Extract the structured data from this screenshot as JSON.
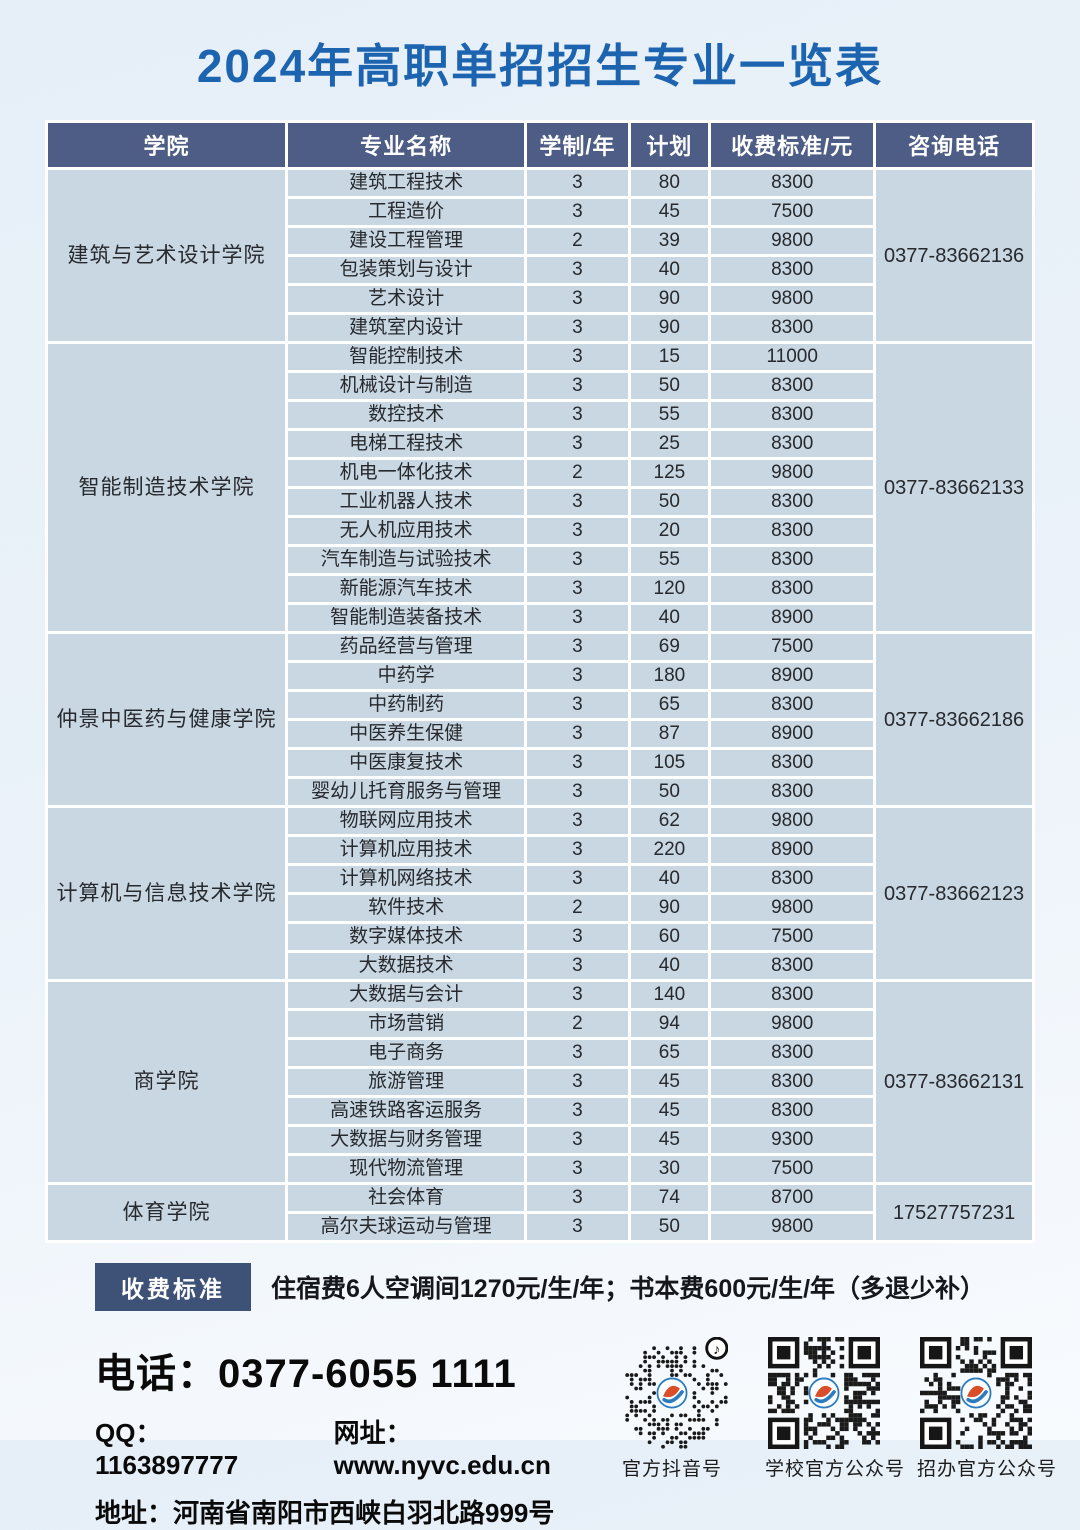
{
  "title": "2024年高职单招招生专业一览表",
  "table": {
    "columns": [
      "学院",
      "专业名称",
      "学制/年",
      "计划",
      "收费标准/元",
      "咨询电话"
    ],
    "sections": [
      {
        "college": "建筑与艺术设计学院",
        "phone": "0377-83662136",
        "rows": [
          {
            "major": "建筑工程技术",
            "years": "3",
            "plan": "80",
            "fee": "8300"
          },
          {
            "major": "工程造价",
            "years": "3",
            "plan": "45",
            "fee": "7500"
          },
          {
            "major": "建设工程管理",
            "years": "2",
            "plan": "39",
            "fee": "9800"
          },
          {
            "major": "包装策划与设计",
            "years": "3",
            "plan": "40",
            "fee": "8300"
          },
          {
            "major": "艺术设计",
            "years": "3",
            "plan": "90",
            "fee": "9800"
          },
          {
            "major": "建筑室内设计",
            "years": "3",
            "plan": "90",
            "fee": "8300"
          }
        ]
      },
      {
        "college": "智能制造技术学院",
        "phone": "0377-83662133",
        "rows": [
          {
            "major": "智能控制技术",
            "years": "3",
            "plan": "15",
            "fee": "11000"
          },
          {
            "major": "机械设计与制造",
            "years": "3",
            "plan": "50",
            "fee": "8300"
          },
          {
            "major": "数控技术",
            "years": "3",
            "plan": "55",
            "fee": "8300"
          },
          {
            "major": "电梯工程技术",
            "years": "3",
            "plan": "25",
            "fee": "8300"
          },
          {
            "major": "机电一体化技术",
            "years": "2",
            "plan": "125",
            "fee": "9800"
          },
          {
            "major": "工业机器人技术",
            "years": "3",
            "plan": "50",
            "fee": "8300"
          },
          {
            "major": "无人机应用技术",
            "years": "3",
            "plan": "20",
            "fee": "8300"
          },
          {
            "major": "汽车制造与试验技术",
            "years": "3",
            "plan": "55",
            "fee": "8300"
          },
          {
            "major": "新能源汽车技术",
            "years": "3",
            "plan": "120",
            "fee": "8300"
          },
          {
            "major": "智能制造装备技术",
            "years": "3",
            "plan": "40",
            "fee": "8900"
          }
        ]
      },
      {
        "college": "仲景中医药与健康学院",
        "phone": "0377-83662186",
        "rows": [
          {
            "major": "药品经营与管理",
            "years": "3",
            "plan": "69",
            "fee": "7500"
          },
          {
            "major": "中药学",
            "years": "3",
            "plan": "180",
            "fee": "8900"
          },
          {
            "major": "中药制药",
            "years": "3",
            "plan": "65",
            "fee": "8300"
          },
          {
            "major": "中医养生保健",
            "years": "3",
            "plan": "87",
            "fee": "8900"
          },
          {
            "major": "中医康复技术",
            "years": "3",
            "plan": "105",
            "fee": "8300"
          },
          {
            "major": "婴幼儿托育服务与管理",
            "years": "3",
            "plan": "50",
            "fee": "8300"
          }
        ]
      },
      {
        "college": "计算机与信息技术学院",
        "phone": "0377-83662123",
        "rows": [
          {
            "major": "物联网应用技术",
            "years": "3",
            "plan": "62",
            "fee": "9800"
          },
          {
            "major": "计算机应用技术",
            "years": "3",
            "plan": "220",
            "fee": "8900"
          },
          {
            "major": "计算机网络技术",
            "years": "3",
            "plan": "40",
            "fee": "8300"
          },
          {
            "major": "软件技术",
            "years": "2",
            "plan": "90",
            "fee": "9800"
          },
          {
            "major": "数字媒体技术",
            "years": "3",
            "plan": "60",
            "fee": "7500"
          },
          {
            "major": "大数据技术",
            "years": "3",
            "plan": "40",
            "fee": "8300"
          }
        ]
      },
      {
        "college": "商学院",
        "phone": "0377-83662131",
        "rows": [
          {
            "major": "大数据与会计",
            "years": "3",
            "plan": "140",
            "fee": "8300"
          },
          {
            "major": "市场营销",
            "years": "2",
            "plan": "94",
            "fee": "9800"
          },
          {
            "major": "电子商务",
            "years": "3",
            "plan": "65",
            "fee": "8300"
          },
          {
            "major": "旅游管理",
            "years": "3",
            "plan": "45",
            "fee": "8300"
          },
          {
            "major": "高速铁路客运服务",
            "years": "3",
            "plan": "45",
            "fee": "8300"
          },
          {
            "major": "大数据与财务管理",
            "years": "3",
            "plan": "45",
            "fee": "9300"
          },
          {
            "major": "现代物流管理",
            "years": "3",
            "plan": "30",
            "fee": "7500"
          }
        ]
      },
      {
        "college": "体育学院",
        "phone": "17527757231",
        "rows": [
          {
            "major": "社会体育",
            "years": "3",
            "plan": "74",
            "fee": "8700"
          },
          {
            "major": "高尔夫球运动与管理",
            "years": "3",
            "plan": "50",
            "fee": "9800"
          }
        ]
      }
    ]
  },
  "note": {
    "badge": "收费标准",
    "text": "住宿费6人空调间1270元/生/年；书本费600元/生/年（多退少补）"
  },
  "footer": {
    "phone_label": "电话：",
    "phone": "0377-6055 1111",
    "qq_label": "QQ：",
    "qq": "1163897777",
    "web_label": "网址：",
    "web": "www.nyvc.edu.cn",
    "addr_label": "地址：",
    "addr": "河南省南阳市西峡白羽北路999号",
    "qr_codes": [
      {
        "label": "官方抖音号"
      },
      {
        "label": "学校官方公众号"
      },
      {
        "label": "招办官方公众号"
      }
    ]
  },
  "colors": {
    "title": "#1c64af",
    "header_bg": "#4e5d85",
    "cell_bg": "#c9d7e2",
    "badge_bg": "#3e5278",
    "logo_red": "#d94f2a",
    "logo_blue": "#2b7bbf"
  }
}
